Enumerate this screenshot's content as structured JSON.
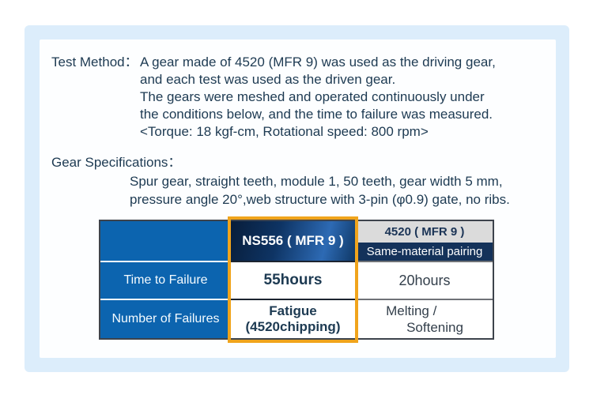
{
  "test_method": {
    "label": "Test Method：",
    "lines": [
      "A gear made of 4520 (MFR 9) was used as the driving gear,",
      "and each test was used as the driven gear.",
      "The gears were meshed and operated continuously under",
      "the conditions  below, and the time to failure was  measured.",
      "<Torque: 18 kgf-cm, Rotational speed: 800 rpm>"
    ]
  },
  "gear_specifications": {
    "label": "Gear Specifications：",
    "lines": [
      "Spur gear, straight teeth, module 1, 50 teeth, gear width 5 mm,",
      "pressure angle 20°,web structure with 3-pin (φ0.9) gate,  no ribs."
    ]
  },
  "table": {
    "col_ns556": {
      "header": "NS556 ( MFR 9 )",
      "highlighted": true
    },
    "col_4520": {
      "header": "4520 ( MFR 9 )",
      "subheader": "Same-material pairing"
    },
    "rows": [
      {
        "label": "Time to Failure",
        "ns556": "55hours",
        "p4520": "20hours"
      },
      {
        "label": "Number of Failures",
        "ns556_line1": "Fatigue",
        "ns556_line2": "(4520chipping)",
        "p4520_line1": "Melting /",
        "p4520_line2": "Softening"
      }
    ]
  },
  "colors": {
    "frame_light_blue": "#dcedfb",
    "row_header_blue": "#0c64af",
    "ns556_header_navy_gradient": [
      "#081d3a",
      "#2d6ab4"
    ],
    "subheader_navy": "#14325a",
    "header_gray": "#dbdbdb",
    "highlight_orange": "#f0a41c",
    "text_navy": "#1d3a52"
  }
}
